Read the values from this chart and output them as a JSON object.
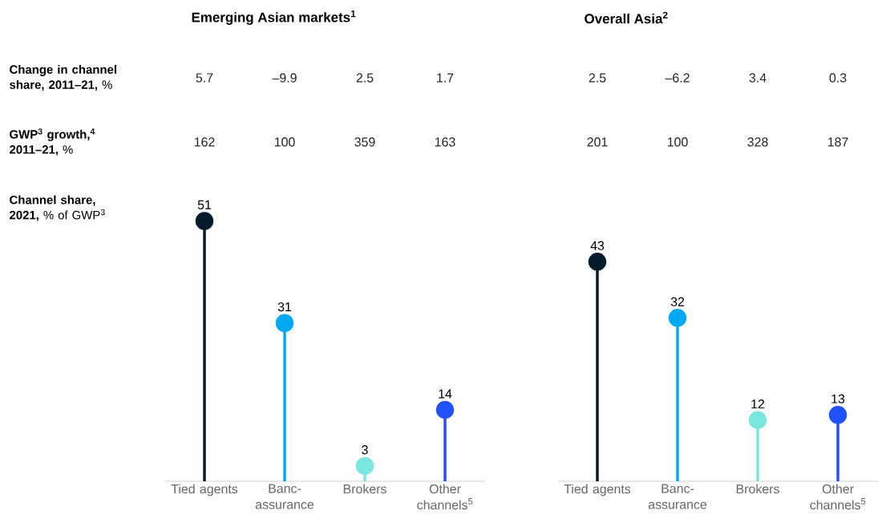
{
  "chart_data": [
    {
      "type": "other",
      "annotations": [
        "**Change in channel share, 2011–21,** %",
        "5.7",
        "–9.9",
        "2.5",
        "1.7",
        "2.5",
        "–6.2",
        "3.4",
        "0.3",
        "**GWP$^{3}$ growth,$^{4}$ 2011–21,** %",
        "162",
        "100",
        "359",
        "163",
        "201",
        "100",
        "328",
        "187"
      ]
    },
    {
      "type": "lollipop",
      "title": "**Emerging Asian markets$^{1}$**",
      "categories": [
        "Tied agents",
        "Banc-assurance",
        "Brokers",
        "Other channels$^{5}$"
      ],
      "data_labels": true,
      "series": [
        {
          "name": "**Channel share, 2021,** % of GWP$^{3}$",
          "values": [
            51,
            31,
            3,
            14
          ],
          "colors": [
            "#051c2c",
            "#00a9f4",
            "#7ae6e0",
            "#2251ff"
          ]
        }
      ]
    },
    {
      "type": "lollipop",
      "title": "**Overall Asia$^{2}$**",
      "categories": [
        "Tied agents",
        "Banc-assurance",
        "Brokers",
        "Other channels$^{5}$"
      ],
      "data_labels": true,
      "series": [
        {
          "values": [
            43,
            32,
            12,
            13
          ],
          "colors": [
            "#051c2c",
            "#00a9f4",
            "#7ae6e0",
            "#2251ff"
          ]
        }
      ]
    }
  ]
}
